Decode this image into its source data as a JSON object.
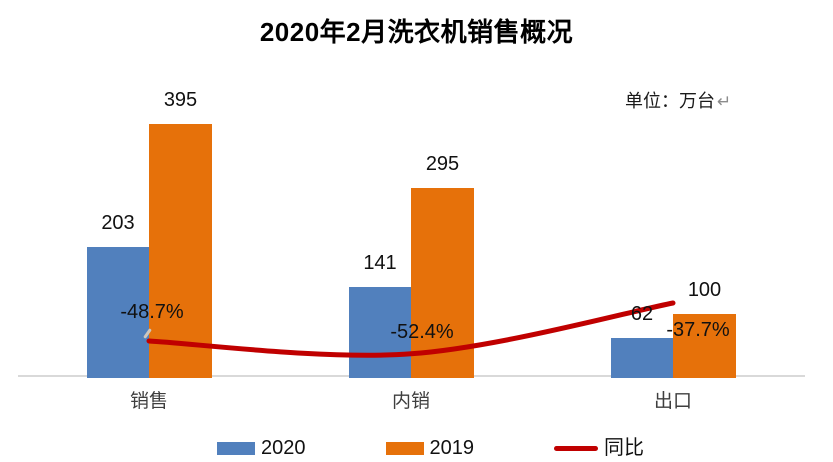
{
  "chart_data": {
    "type": "bar",
    "subtype": "grouped-bars-with-line-overlay",
    "title": "2020年2月洗衣机销售概况",
    "unit_label": "单位：万台",
    "return_mark": "↵",
    "categories": [
      "销售",
      "内销",
      "出口"
    ],
    "series": [
      {
        "name": "2020",
        "type": "bar",
        "color": "#5180BD",
        "values": [
          203,
          141,
          62
        ]
      },
      {
        "name": "2019",
        "type": "bar",
        "color": "#E6710A",
        "values": [
          395,
          295,
          100
        ]
      }
    ],
    "line_series": {
      "name": "同比",
      "type": "line",
      "color": "#C00000",
      "values_percent": [
        -48.7,
        -52.4,
        -37.7
      ],
      "labels": [
        "-48.7%",
        "-52.4%",
        "-37.7%"
      ]
    },
    "axes": {
      "x_axis_line_color": "#D9D9D9",
      "y_axis_visible": false,
      "gridlines": false,
      "value_labels_shown": true
    },
    "legend": {
      "position": "bottom"
    }
  }
}
